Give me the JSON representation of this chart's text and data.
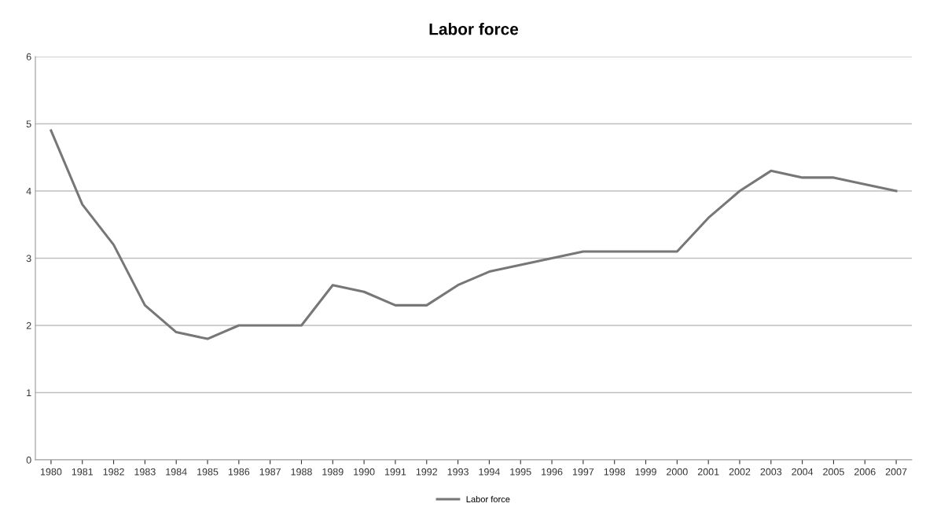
{
  "chart_data": {
    "type": "line",
    "title": "Labor force",
    "categories": [
      "1980",
      "1981",
      "1982",
      "1983",
      "1984",
      "1985",
      "1986",
      "1987",
      "1988",
      "1989",
      "1990",
      "1991",
      "1992",
      "1993",
      "1994",
      "1995",
      "1996",
      "1997",
      "1998",
      "1999",
      "2000",
      "2001",
      "2002",
      "2003",
      "2004",
      "2005",
      "2006",
      "2007"
    ],
    "series": [
      {
        "name": "Labor force",
        "color": "#777777",
        "values": [
          4.9,
          3.8,
          3.2,
          2.3,
          1.9,
          1.8,
          2.0,
          2.0,
          2.0,
          2.6,
          2.5,
          2.3,
          2.3,
          2.6,
          2.8,
          2.9,
          3.0,
          3.1,
          3.1,
          3.1,
          3.1,
          3.6,
          4.0,
          4.3,
          4.2,
          4.2,
          4.1,
          4.0
        ]
      }
    ],
    "ylim": [
      0,
      6
    ],
    "yticks": [
      0,
      1,
      2,
      3,
      4,
      5,
      6
    ],
    "grid": "y",
    "legend": "bottom",
    "marker": "none",
    "line_style": "solid"
  }
}
